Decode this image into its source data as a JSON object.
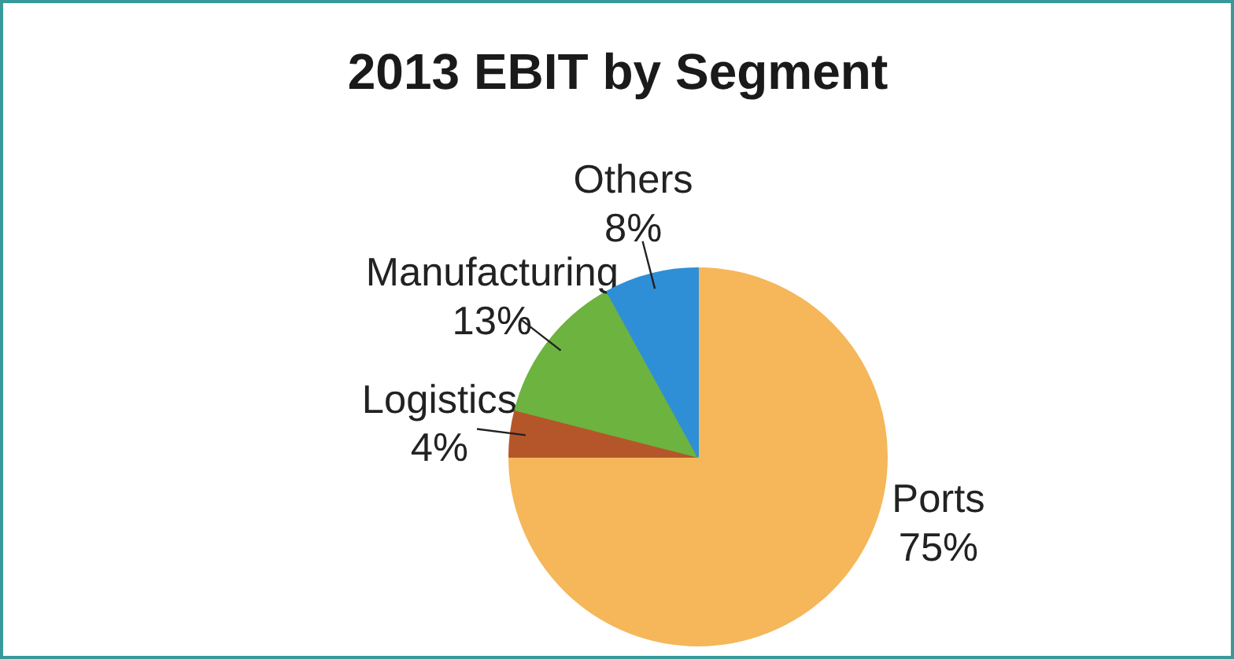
{
  "chart_data": {
    "type": "pie",
    "title": "2013 EBIT by Segment",
    "categories": [
      "Ports",
      "Logistics",
      "Manufacturing",
      "Others"
    ],
    "values": [
      75,
      4,
      13,
      8
    ],
    "colors": [
      "#f5b75a",
      "#b5562a",
      "#6db33f",
      "#2f8fd6"
    ],
    "value_labels": [
      "75%",
      "4%",
      "13%",
      "8%"
    ]
  }
}
